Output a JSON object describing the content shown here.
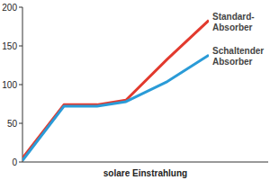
{
  "chart_data": {
    "type": "line",
    "x_label": "solare Einstrahlung",
    "x": [
      0,
      10,
      18,
      25,
      35,
      45
    ],
    "xlim": [
      0,
      45
    ],
    "ylim": [
      0,
      200
    ],
    "yticks": [
      0,
      50,
      100,
      150,
      200
    ],
    "grid": false,
    "legend": "right",
    "tick_labels": "y",
    "series": [
      {
        "name": "Standard-Absorber",
        "color": "#e23a2e",
        "values": [
          5,
          74,
          74,
          80,
          133,
          183
        ]
      },
      {
        "name": "Schaltender Absorber",
        "color": "#2a9bd7",
        "values": [
          2,
          72,
          72,
          78,
          104,
          138
        ]
      }
    ]
  }
}
